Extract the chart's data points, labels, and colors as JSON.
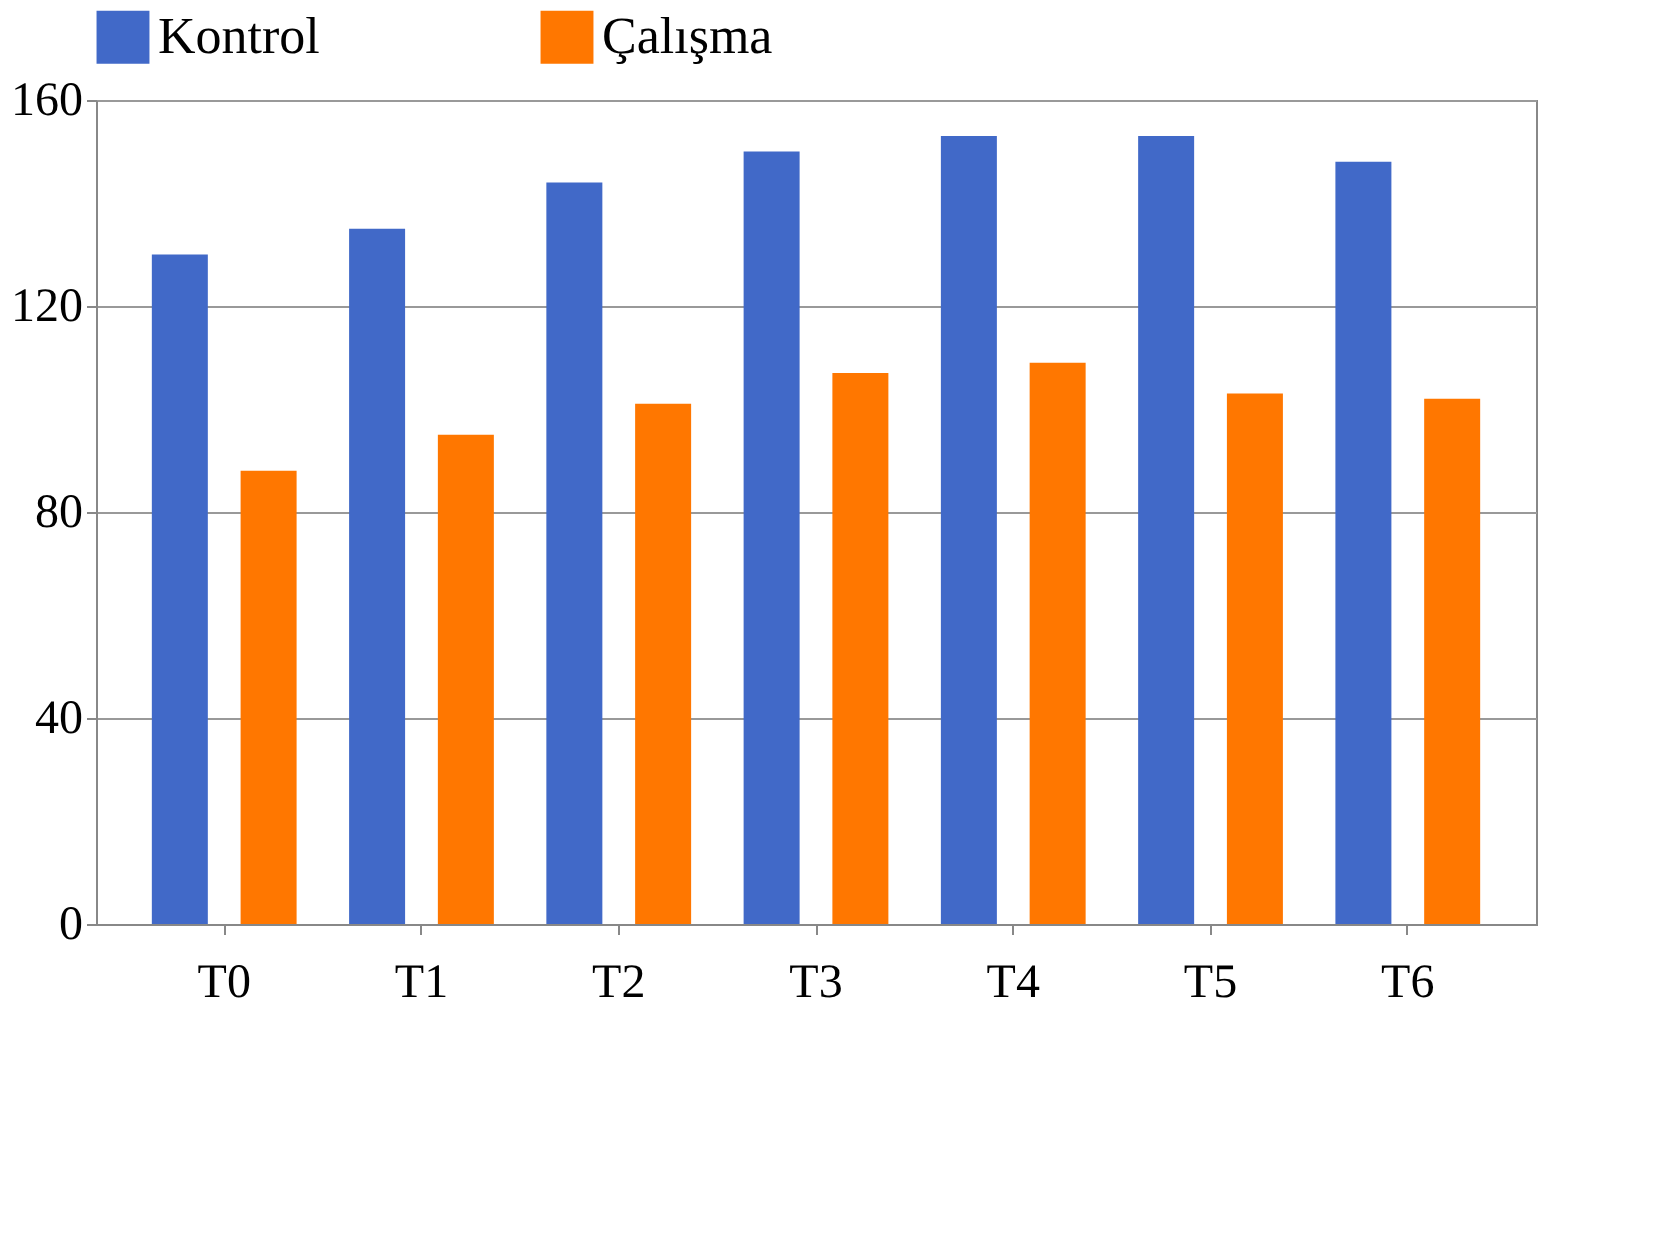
{
  "chart_data": {
    "type": "bar",
    "categories": [
      "T0",
      "T1",
      "T2",
      "T3",
      "T4",
      "T5",
      "T6"
    ],
    "series": [
      {
        "name": "Kontrol",
        "color": "#4169c8",
        "values": [
          130,
          135,
          144,
          150,
          153,
          153,
          148
        ]
      },
      {
        "name": "Çalışma",
        "color": "#ff7700",
        "values": [
          88,
          95,
          101,
          107,
          109,
          103,
          102
        ]
      }
    ],
    "ylim": [
      0,
      160
    ],
    "yticks": [
      0,
      40,
      80,
      120,
      160
    ],
    "grid": "y",
    "legend": "top"
  }
}
